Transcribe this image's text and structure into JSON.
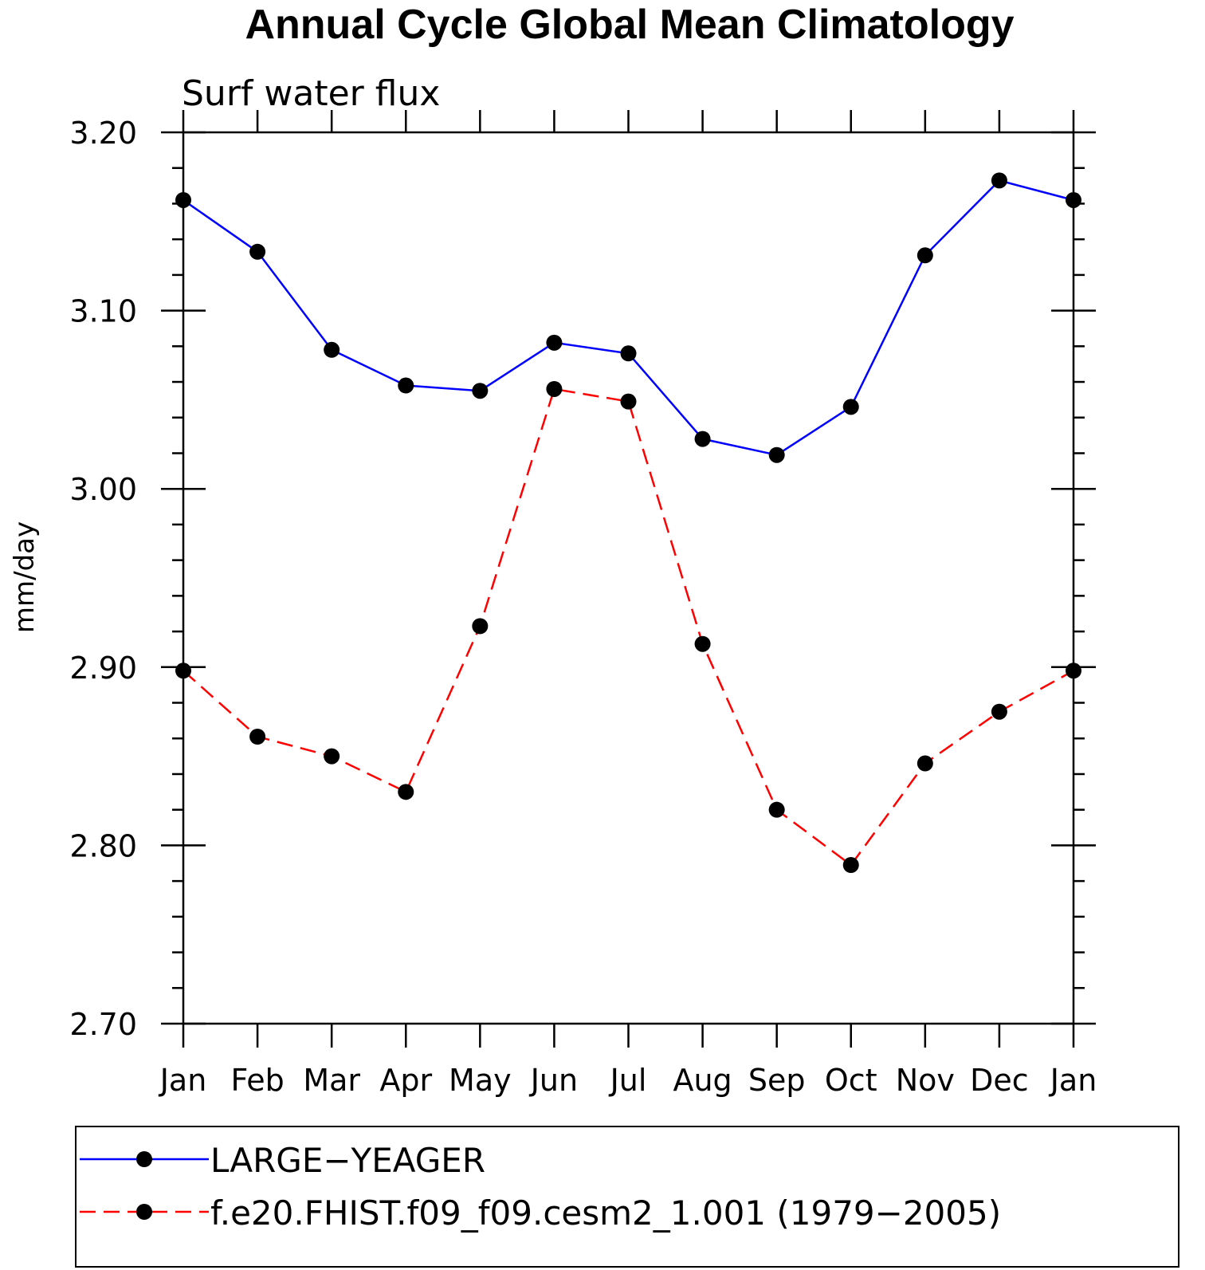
{
  "chart_data": {
    "type": "line",
    "title": "Annual Cycle Global Mean Climatology",
    "subtitle": "Surf water flux",
    "xlabel": "",
    "ylabel": "mm/day",
    "ylim": [
      2.7,
      3.2
    ],
    "yticks": [
      "3.20",
      "3.10",
      "3.00",
      "2.90",
      "2.80",
      "2.70"
    ],
    "ytick_values": [
      3.2,
      3.1,
      3.0,
      2.9,
      2.8,
      2.7
    ],
    "categories": [
      "Jan",
      "Feb",
      "Mar",
      "Apr",
      "May",
      "Jun",
      "Jul",
      "Aug",
      "Sep",
      "Oct",
      "Nov",
      "Dec",
      "Jan"
    ],
    "grid": false,
    "legend_position": "bottom",
    "series": [
      {
        "name": "LARGE−YEAGER",
        "color": "#0000ff",
        "dash": "solid",
        "marker": "filled-circle",
        "values": [
          3.162,
          3.133,
          3.078,
          3.058,
          3.055,
          3.082,
          3.076,
          3.028,
          3.019,
          3.046,
          3.131,
          3.173,
          3.162
        ]
      },
      {
        "name": "f.e20.FHIST.f09_f09.cesm2_1.001 (1979−2005)",
        "color": "#ff0000",
        "dash": "dashed",
        "marker": "filled-circle",
        "values": [
          2.898,
          2.861,
          2.85,
          2.83,
          2.923,
          3.056,
          3.049,
          2.913,
          2.82,
          2.789,
          2.846,
          2.875,
          2.898
        ]
      }
    ]
  }
}
